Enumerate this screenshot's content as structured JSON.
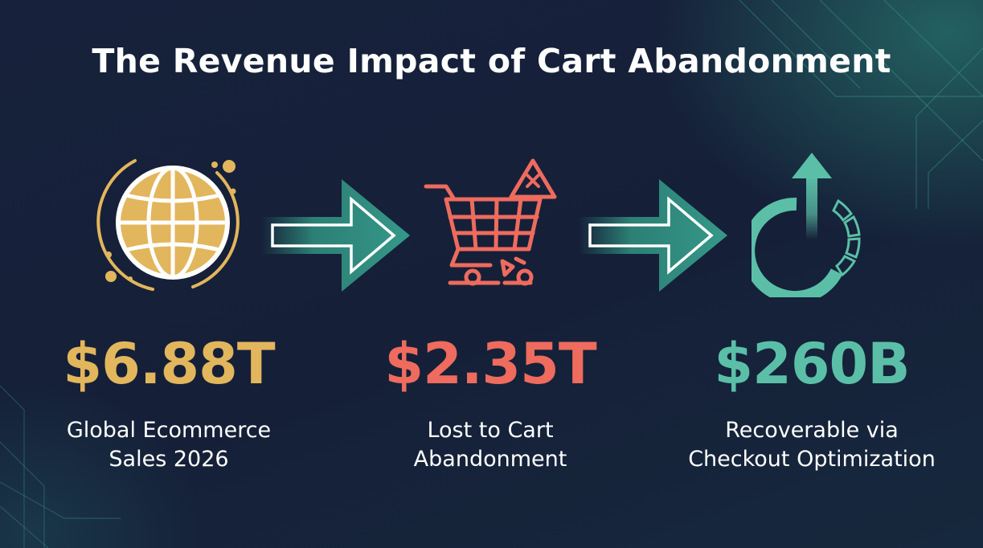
{
  "title": "The Revenue Impact of Cart Abandonment",
  "colors": {
    "background": "#16213a",
    "gold": "#e2b65c",
    "red": "#ee6b5e",
    "teal": "#5bbfa8",
    "arrow": "#2f8a7b"
  },
  "stats": [
    {
      "icon": "globe-icon",
      "value": "$6.88T",
      "label_lines": [
        "Global Ecommerce",
        "Sales 2026"
      ],
      "color": "#e2b65c"
    },
    {
      "icon": "shopping-cart-warning-icon",
      "value": "$2.35T",
      "label_lines": [
        "Lost to Cart",
        "Abandonment"
      ],
      "color": "#ee6b5e"
    },
    {
      "icon": "recovery-arrow-icon",
      "value": "$260B",
      "label_lines": [
        "Recoverable via",
        "Checkout Optimization"
      ],
      "color": "#5bbfa8"
    }
  ],
  "connectors": [
    "right-arrow-icon",
    "right-arrow-icon"
  ]
}
